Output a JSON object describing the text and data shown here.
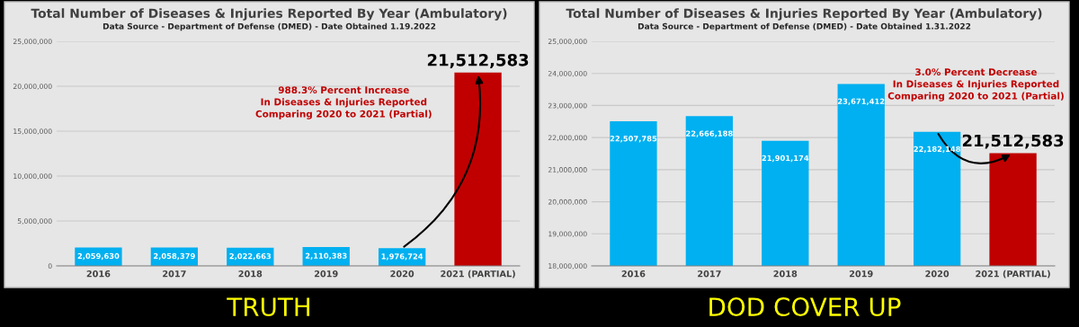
{
  "chart_data": [
    {
      "type": "bar",
      "title": "Total Number of Diseases & Injuries Reported By Year (Ambulatory)",
      "subtitle": "Data Source - Department of Defense (DMED) - Date Obtained 1.19.2022",
      "categories": [
        "2016",
        "2017",
        "2018",
        "2019",
        "2020",
        "2021 (PARTIAL)"
      ],
      "values": [
        2059630,
        2058379,
        2022663,
        2110383,
        1976724,
        21512583
      ],
      "colors": [
        "#00b0f0",
        "#00b0f0",
        "#00b0f0",
        "#00b0f0",
        "#00b0f0",
        "#c00000"
      ],
      "value_labels": [
        "2,059,630",
        "2,058,379",
        "2,022,663",
        "2,110,383",
        "1,976,724",
        "21,512,583"
      ],
      "ylim": [
        0,
        25000000
      ],
      "yticks": [
        0,
        {
          "value": 5000000,
          "label": "5,000,000"
        },
        {
          "value": 10000000,
          "label": "10,000,000"
        },
        {
          "value": 15000000,
          "label": "15,000,000"
        },
        {
          "value": 20000000,
          "label": "20,000,000"
        },
        {
          "value": 25000000,
          "label": "25,000,000"
        }
      ],
      "grid": "y",
      "annotations": [
        "988.3% Percent Increase\nIn Diseases & Injuries Reported\nComparing 2020 to 2021 (Partial)",
        "TRUTH"
      ]
    },
    {
      "type": "bar",
      "title": "Total Number of Diseases & Injuries Reported By Year (Ambulatory)",
      "subtitle": "Data Source - Department of Defense (DMED) - Date Obtained 1.31.2022",
      "categories": [
        "2016",
        "2017",
        "2018",
        "2019",
        "2020",
        "2021 (PARTIAL)"
      ],
      "values": [
        22507785,
        22666188,
        21901174,
        23671412,
        22182148,
        21512583
      ],
      "colors": [
        "#00b0f0",
        "#00b0f0",
        "#00b0f0",
        "#00b0f0",
        "#00b0f0",
        "#c00000"
      ],
      "value_labels": [
        "22,507,785",
        "22,666,188",
        "21,901,174",
        "23,671,412",
        "22,182,148",
        "21,512,583"
      ],
      "ylim": [
        18000000,
        25000000
      ],
      "yticks": [
        {
          "value": 18000000,
          "label": "18,000,000"
        },
        {
          "value": 19000000,
          "label": "19,000,000"
        },
        {
          "value": 20000000,
          "label": "20,000,000"
        },
        {
          "value": 21000000,
          "label": "21,000,000"
        },
        {
          "value": 22000000,
          "label": "22,000,000"
        },
        {
          "value": 23000000,
          "label": "23,000,000"
        },
        {
          "value": 24000000,
          "label": "24,000,000"
        },
        {
          "value": 25000000,
          "label": "25,000,000"
        }
      ],
      "grid": "y",
      "annotations": [
        "3.0% Percent Decrease\nIn Diseases & Injuries Reported\nComparing 2020 to 2021 (Partial)",
        "DOD COVER UP"
      ]
    }
  ]
}
